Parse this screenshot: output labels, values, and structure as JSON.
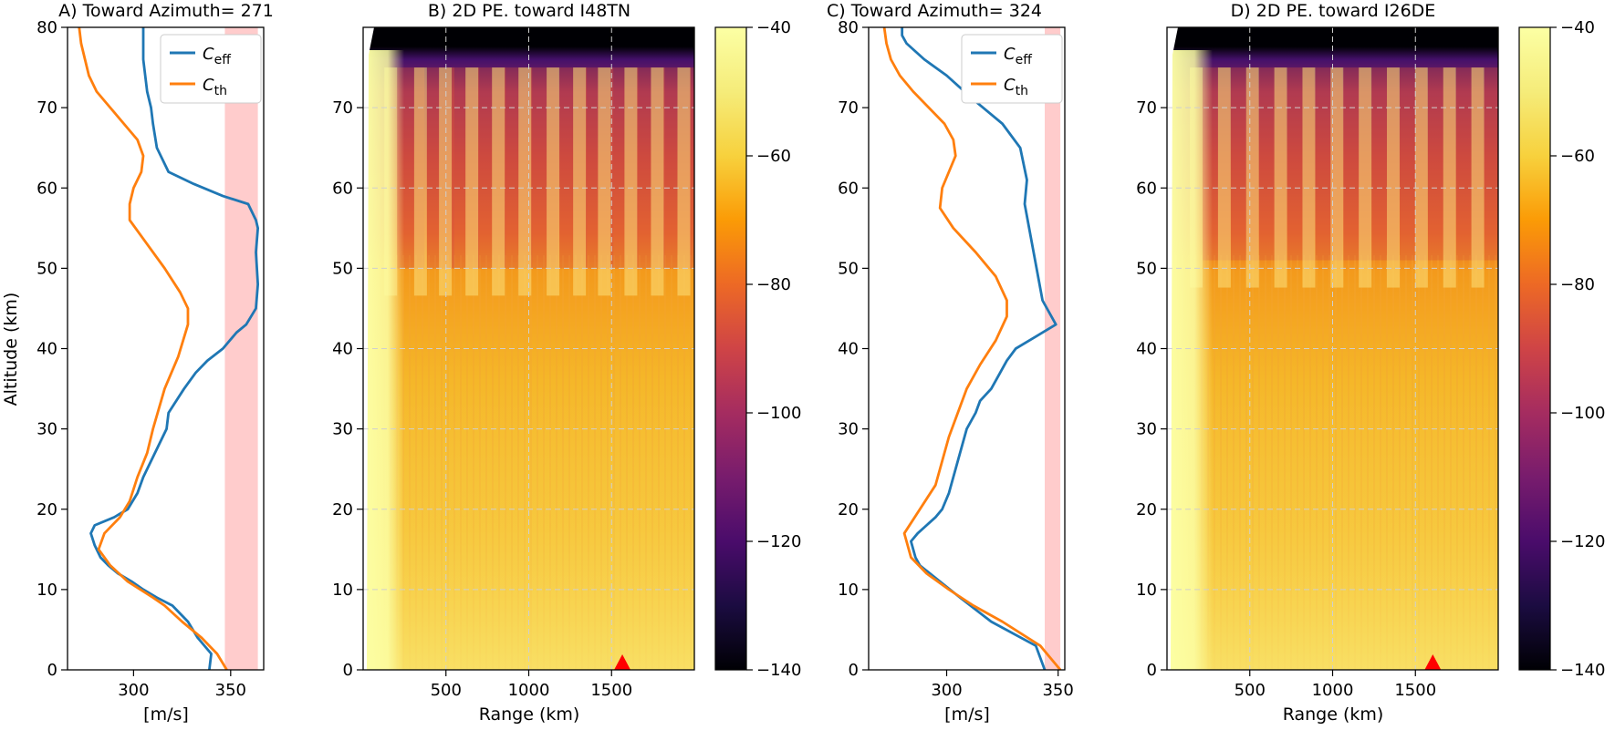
{
  "chart_data": [
    {
      "panel": "A",
      "type": "line",
      "title": "A) Toward Azimuth= 271",
      "xlabel": "[m/s]",
      "ylabel": "Altitude (km)",
      "xlim": [
        266,
        367
      ],
      "ylim": [
        0,
        80
      ],
      "xticks": [
        300,
        350
      ],
      "yticks": [
        0,
        10,
        20,
        30,
        40,
        50,
        60,
        70,
        80
      ],
      "highlight_band": {
        "x_range": [
          347,
          364
        ],
        "color": "#ffcccc"
      },
      "legend": {
        "position": "top-right",
        "entries": [
          {
            "label": "C",
            "subscript": "eff",
            "color": "#1f77b4"
          },
          {
            "label": "C",
            "subscript": "th",
            "color": "#ff7f0e"
          }
        ]
      },
      "series": [
        {
          "name": "C_eff",
          "color": "#1f77b4",
          "x": [
            339,
            340,
            333,
            328,
            320,
            312,
            305,
            299,
            292,
            287,
            283,
            280,
            278,
            280,
            290,
            297,
            302,
            305,
            309,
            313,
            317,
            318,
            322,
            326,
            332,
            338,
            346,
            353,
            358,
            363,
            364,
            363,
            364,
            363,
            359,
            346,
            331,
            318,
            312,
            310,
            309,
            307,
            306,
            305,
            305
          ],
          "y": [
            0,
            2,
            4,
            6,
            8,
            9,
            10,
            11,
            12,
            13,
            14,
            15.5,
            17,
            18,
            19,
            20,
            22,
            24,
            26,
            28,
            30,
            32,
            33.5,
            35,
            37,
            38.5,
            40,
            42,
            43,
            45,
            48,
            52,
            55,
            56,
            58,
            59,
            60.5,
            62,
            65,
            68,
            70,
            72,
            74,
            76,
            80
          ]
        },
        {
          "name": "C_th",
          "color": "#ff7f0e",
          "x": [
            348,
            343,
            335,
            325,
            316,
            310,
            297,
            288,
            282,
            285,
            293,
            298,
            302,
            307,
            310,
            316,
            323,
            328,
            328,
            324,
            316,
            307,
            298,
            298,
            300,
            304,
            305,
            302,
            295,
            288,
            281,
            277,
            275,
            273,
            272
          ],
          "y": [
            0,
            2,
            4,
            6,
            8,
            9,
            11,
            13,
            15,
            17,
            19,
            21,
            24,
            27,
            30,
            35,
            39,
            43,
            45,
            47,
            50,
            53,
            56,
            58,
            60,
            62,
            64,
            66,
            68,
            70,
            72,
            74,
            76,
            78,
            80
          ]
        }
      ]
    },
    {
      "panel": "B",
      "type": "heatmap",
      "title": "B) 2D PE. toward I48TN",
      "xlabel": "Range (km)",
      "xlim": [
        0,
        2000
      ],
      "ylim": [
        0,
        80
      ],
      "xticks": [
        500,
        1000,
        1500
      ],
      "yticks": [
        0,
        10,
        20,
        30,
        40,
        50,
        60,
        70
      ],
      "colorbar": {
        "min": -140,
        "max": -40,
        "ticks": [
          -40,
          -60,
          -80,
          -100,
          -120,
          -140
        ]
      },
      "marker": {
        "shape": "triangle",
        "color": "#ff0000",
        "x": 1565,
        "y": 0
      },
      "features": {
        "upper_boundary_km": 75,
        "duct_top_km": 50,
        "bounces": [
          150,
          330,
          480,
          640,
          800,
          960,
          1130,
          1290,
          1440,
          1600,
          1760,
          1920
        ]
      }
    },
    {
      "panel": "C",
      "type": "line",
      "title": "C) Toward Azimuth= 324",
      "xlabel": "[m/s]",
      "xlim": [
        265,
        353
      ],
      "ylim": [
        0,
        80
      ],
      "xticks": [
        300,
        350
      ],
      "yticks": [
        0,
        10,
        20,
        30,
        40,
        50,
        60,
        70,
        80
      ],
      "highlight_band": {
        "x_range": [
          344,
          351
        ],
        "color": "#ffcccc"
      },
      "legend": {
        "position": "top-right",
        "entries": [
          {
            "label": "C",
            "subscript": "eff",
            "color": "#1f77b4"
          },
          {
            "label": "C",
            "subscript": "th",
            "color": "#ff7f0e"
          }
        ]
      },
      "series": [
        {
          "name": "C_eff",
          "color": "#1f77b4",
          "x": [
            344,
            340,
            320,
            306,
            297,
            288,
            286,
            284,
            287,
            291,
            295,
            298,
            301,
            303,
            305,
            307,
            309,
            313,
            315,
            320,
            324,
            327,
            331,
            340,
            349,
            343,
            341,
            339,
            337,
            335,
            336,
            333,
            325,
            312,
            300,
            290,
            282,
            280,
            280
          ],
          "y": [
            0,
            3,
            6,
            9,
            11,
            13,
            14,
            16,
            17,
            18,
            19,
            20,
            22,
            24,
            26,
            28,
            30,
            32,
            33.5,
            35,
            37,
            38.5,
            40,
            41.5,
            43,
            46,
            49,
            52,
            55,
            58,
            61,
            65,
            68,
            71,
            74,
            76,
            78,
            79,
            80
          ]
        },
        {
          "name": "C_th",
          "color": "#ff7f0e",
          "x": [
            351,
            342,
            325,
            312,
            301,
            291,
            284,
            281,
            288,
            295,
            298,
            301,
            305,
            309,
            315,
            322,
            327,
            327,
            322,
            313,
            303,
            297,
            298,
            301,
            304,
            303,
            299,
            292,
            285,
            279,
            275,
            273,
            272
          ],
          "y": [
            0,
            3,
            6,
            8,
            10,
            12,
            14,
            17,
            20,
            23,
            26,
            29,
            32,
            35,
            38,
            41,
            44,
            46,
            49,
            52,
            55,
            57.5,
            60,
            62,
            64,
            66,
            68,
            70,
            72,
            74,
            76,
            78,
            80
          ]
        }
      ]
    },
    {
      "panel": "D",
      "type": "heatmap",
      "title": "D) 2D PE. toward I26DE",
      "xlabel": "Range (km)",
      "xlim": [
        0,
        2000
      ],
      "ylim": [
        0,
        80
      ],
      "xticks": [
        500,
        1000,
        1500
      ],
      "yticks": [
        0,
        10,
        20,
        30,
        40,
        50,
        60,
        70
      ],
      "colorbar": {
        "min": -140,
        "max": -40,
        "ticks": [
          -40,
          -60,
          -80,
          -100,
          -120,
          -140
        ]
      },
      "marker": {
        "shape": "triangle",
        "color": "#ff0000",
        "x": 1605,
        "y": 0
      },
      "features": {
        "upper_boundary_km": 75,
        "duct_top_km": 51,
        "bounces": [
          160,
          330,
          500,
          670,
          840,
          1010,
          1180,
          1350,
          1520,
          1690,
          1860
        ]
      }
    }
  ]
}
